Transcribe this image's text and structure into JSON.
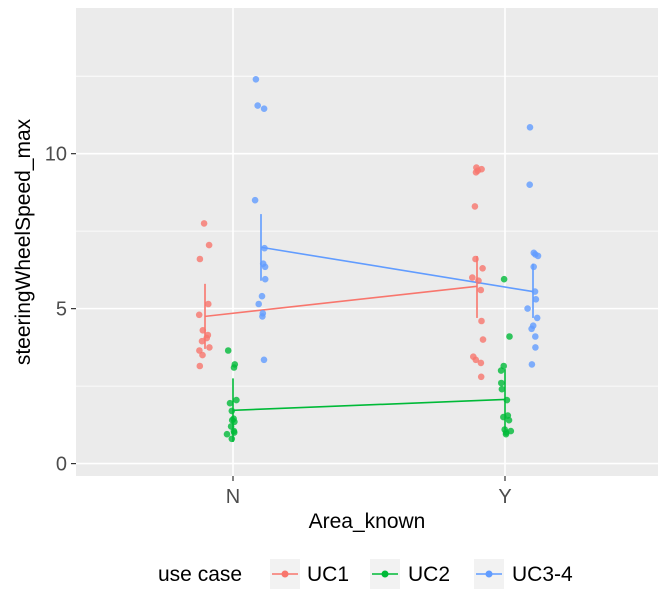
{
  "chart_data": {
    "type": "scatter",
    "xlabel": "Area_known",
    "ylabel": "steeringWheelSpeed_max",
    "categories": [
      "N",
      "Y"
    ],
    "y_ticks": [
      0,
      5,
      10
    ],
    "y_tick_labels": [
      "0",
      "5",
      "10"
    ],
    "ylim": [
      -0.4,
      14.7
    ],
    "grid": true,
    "legend": {
      "title": "use case",
      "placement": "bottom",
      "entries": [
        "UC1",
        "UC2",
        "UC3-4"
      ]
    },
    "series": [
      {
        "name": "UC1",
        "color": "#F8766D",
        "mean": [
          4.75,
          5.72
        ],
        "error_low": [
          3.7,
          4.7
        ],
        "error_high": [
          5.8,
          6.7
        ],
        "points": [
          {
            "x": "N",
            "y": [
              7.75,
              7.05,
              6.6,
              5.15,
              4.8,
              4.3,
              4.15,
              4.05,
              3.95,
              3.75,
              3.65,
              3.5,
              3.15
            ]
          },
          {
            "x": "Y",
            "y": [
              9.55,
              9.5,
              9.45,
              9.4,
              8.3,
              6.6,
              6.3,
              6.0,
              5.9,
              5.6,
              4.6,
              4.0,
              3.45,
              3.35,
              3.25,
              2.8
            ]
          }
        ]
      },
      {
        "name": "UC2",
        "color": "#00BA38",
        "mean": [
          1.72,
          2.07
        ],
        "error_low": [
          0.7,
          1.1
        ],
        "error_high": [
          2.75,
          3.05
        ],
        "points": [
          {
            "x": "N",
            "y": [
              3.65,
              3.2,
              3.1,
              2.05,
              1.95,
              1.7,
              1.45,
              1.4,
              1.35,
              1.2,
              1.05,
              1.0,
              0.95,
              0.8
            ]
          },
          {
            "x": "Y",
            "y": [
              5.95,
              4.1,
              3.15,
              3.0,
              2.6,
              2.4,
              2.05,
              1.55,
              1.5,
              1.4,
              1.1,
              1.05,
              1.0,
              0.95
            ]
          }
        ]
      },
      {
        "name": "UC3-4",
        "color": "#619CFF",
        "mean": [
          6.98,
          5.55
        ],
        "error_low": [
          5.9,
          4.7
        ],
        "error_high": [
          8.05,
          6.45
        ],
        "points": [
          {
            "x": "N",
            "y": [
              12.4,
              11.55,
              11.45,
              8.5,
              6.95,
              6.45,
              6.35,
              5.95,
              5.4,
              5.15,
              4.85,
              4.75,
              3.35
            ]
          },
          {
            "x": "Y",
            "y": [
              10.85,
              9.0,
              6.8,
              6.75,
              6.7,
              6.35,
              5.55,
              5.3,
              5.0,
              4.7,
              4.45,
              4.35,
              4.1,
              3.75,
              3.2
            ]
          }
        ]
      }
    ]
  }
}
